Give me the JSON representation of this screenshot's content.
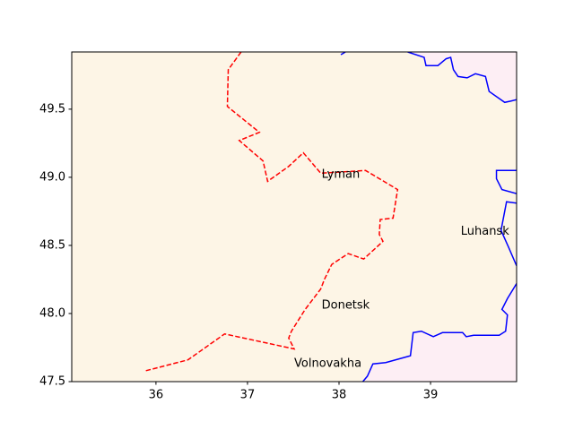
{
  "chart_data": {
    "type": "map",
    "background": "#fdf5e6",
    "xlim": [
      35.08,
      39.94
    ],
    "ylim": [
      47.5,
      49.92
    ],
    "xticks": [
      36,
      37,
      38,
      39
    ],
    "yticks": [
      47.5,
      {
        "value": 48,
        "label": "48.0"
      },
      48.5,
      {
        "value": 49,
        "label": "49.0"
      },
      49.5
    ],
    "series": [
      {
        "color": "#fdeef4",
        "line": "#0000ff",
        "style": "solid",
        "fill": "top-right",
        "x": [
          38.75,
          38.93,
          38.95,
          39.08,
          39.17,
          39.22,
          39.25,
          39.3,
          39.4,
          39.49,
          39.6,
          39.64,
          39.81,
          39.88,
          39.94
        ],
        "y": [
          49.92,
          49.88,
          49.82,
          49.82,
          49.87,
          49.88,
          49.79,
          49.74,
          49.73,
          49.76,
          49.74,
          49.63,
          49.55,
          49.56,
          49.57
        ]
      },
      {
        "line": "#0000ff",
        "style": "solid",
        "x": [
          38.02,
          38.07
        ],
        "y": [
          49.9,
          49.92
        ]
      },
      {
        "line": "#0000ff",
        "style": "solid",
        "x": [
          39.94,
          39.72,
          39.72,
          39.78,
          39.94
        ],
        "y": [
          49.05,
          49.05,
          48.99,
          48.91,
          48.88
        ]
      },
      {
        "line": "#0000ff",
        "style": "solid",
        "x": [
          39.94,
          39.83,
          39.77,
          39.85,
          39.94
        ],
        "y": [
          48.81,
          48.82,
          48.61,
          48.49,
          48.35
        ]
      },
      {
        "color": "#fdeef4",
        "line": "#0000ff",
        "style": "solid",
        "fill": "bottom-right",
        "x": [
          39.94,
          39.84,
          39.78,
          39.84,
          39.82,
          39.75,
          39.47,
          39.39,
          39.35,
          39.13,
          39.03,
          38.9,
          38.81,
          38.78,
          38.51,
          38.37,
          38.31,
          38.26
        ],
        "y": [
          48.22,
          48.11,
          48.03,
          47.99,
          47.87,
          47.84,
          47.84,
          47.83,
          47.86,
          47.86,
          47.83,
          47.87,
          47.86,
          47.69,
          47.64,
          47.63,
          47.54,
          47.5
        ]
      },
      {
        "line": "#ff0000",
        "style": "dashed",
        "x": [
          35.89,
          36.35,
          36.75,
          37.51,
          37.45,
          37.48,
          37.63,
          37.8,
          37.84,
          37.92,
          38.1,
          38.27,
          38.48,
          38.44,
          38.45,
          38.59,
          38.64,
          38.29,
          37.8,
          37.61,
          37.45,
          37.22,
          37.17,
          36.91,
          37.13,
          36.78,
          36.79,
          36.93
        ],
        "y": [
          47.58,
          47.66,
          47.85,
          47.74,
          47.82,
          47.87,
          48.03,
          48.18,
          48.25,
          48.36,
          48.44,
          48.4,
          48.53,
          48.58,
          48.69,
          48.7,
          48.91,
          49.05,
          49.03,
          49.18,
          49.08,
          48.97,
          49.12,
          49.27,
          49.33,
          49.52,
          49.79,
          49.92
        ]
      }
    ],
    "labels": [
      {
        "text": "Lyman",
        "x": 37.81,
        "y": 49.02
      },
      {
        "text": "Luhansk",
        "x": 39.33,
        "y": 48.6
      },
      {
        "text": "Donetsk",
        "x": 37.81,
        "y": 48.06
      },
      {
        "text": "Volnovakha",
        "x": 37.51,
        "y": 47.63
      }
    ]
  }
}
